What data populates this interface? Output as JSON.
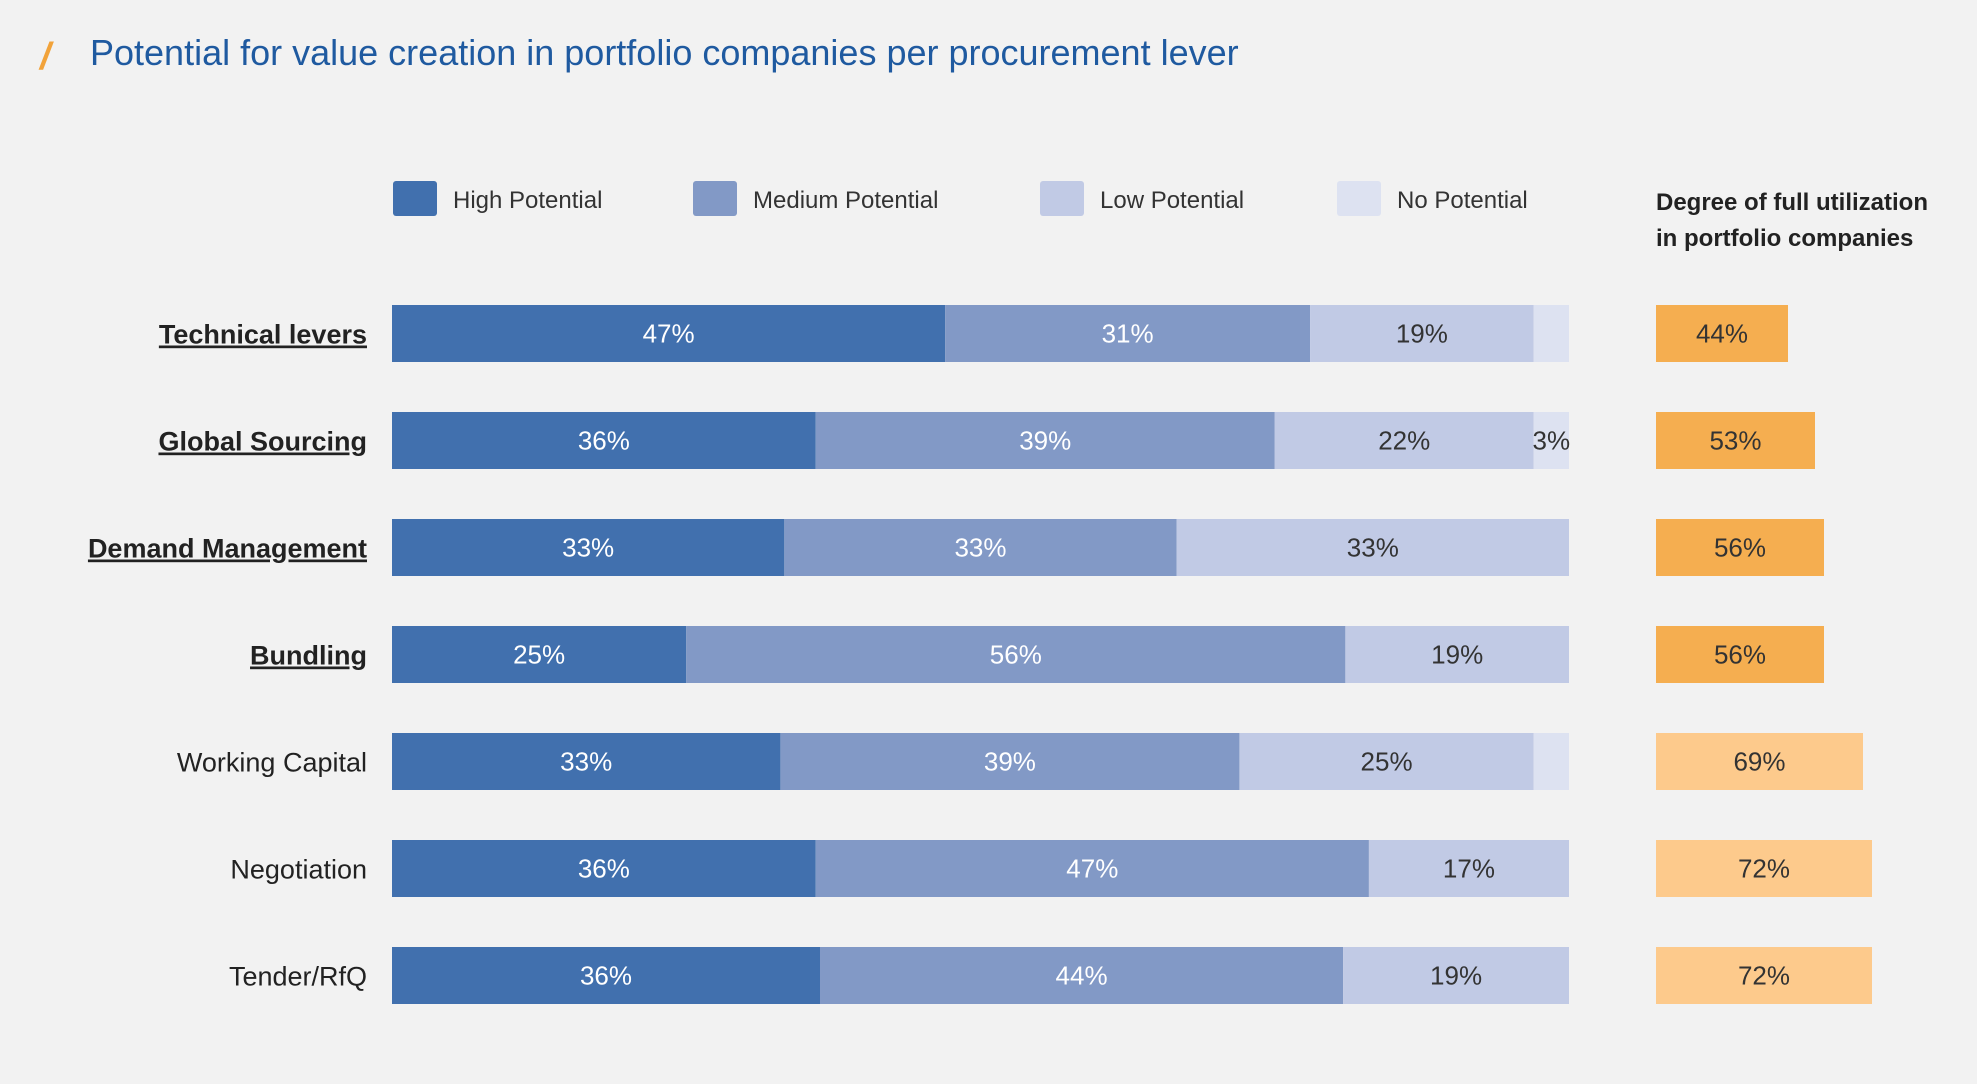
{
  "title": "Potential for value creation in portfolio companies per procurement lever",
  "colors": {
    "title": "#1f5aa0",
    "accent": "#f2a33a",
    "high": "#4170ae",
    "medium": "#8299c6",
    "low": "#c1cae5",
    "none": "#dde2f1",
    "util_strong": "#f5ae50",
    "util_light": "#fdca8c"
  },
  "chart_data": {
    "type": "bar",
    "orientation": "horizontal",
    "stacked": true,
    "legend": [
      "High Potential",
      "Medium Potential",
      "Low Potential",
      "No Potential"
    ],
    "categories": [
      "Technical levers",
      "Global Sourcing",
      "Demand Management",
      "Bundling",
      "Working Capital",
      "Negotiation",
      "Tender/RfQ"
    ],
    "emphasized_categories": [
      "Technical levers",
      "Global Sourcing",
      "Demand Management",
      "Bundling"
    ],
    "series": [
      {
        "name": "High Potential",
        "values": [
          47,
          36,
          33,
          25,
          33,
          36,
          36
        ],
        "labels": [
          "47%",
          "36%",
          "33%",
          "25%",
          "33%",
          "36%",
          "36%"
        ]
      },
      {
        "name": "Medium Potential",
        "values": [
          31,
          39,
          33,
          56,
          39,
          47,
          44
        ],
        "labels": [
          "31%",
          "39%",
          "33%",
          "56%",
          "39%",
          "47%",
          "44%"
        ]
      },
      {
        "name": "Low Potential",
        "values": [
          19,
          22,
          33,
          19,
          25,
          17,
          19
        ],
        "labels": [
          "19%",
          "22%",
          "33%",
          "19%",
          "25%",
          "17%",
          "19%"
        ]
      },
      {
        "name": "No Potential",
        "values": [
          3,
          3,
          0,
          0,
          3,
          0,
          0
        ],
        "labels": [
          "",
          "3%",
          "",
          "",
          "",
          "",
          ""
        ]
      }
    ],
    "utilization": {
      "title_line1": "Degree of full utilization",
      "title_line2": "in portfolio companies",
      "values": [
        44,
        53,
        56,
        56,
        69,
        72,
        72
      ],
      "labels": [
        "44%",
        "53%",
        "56%",
        "56%",
        "69%",
        "72%",
        "72%"
      ]
    },
    "xlim": [
      0,
      100
    ]
  }
}
